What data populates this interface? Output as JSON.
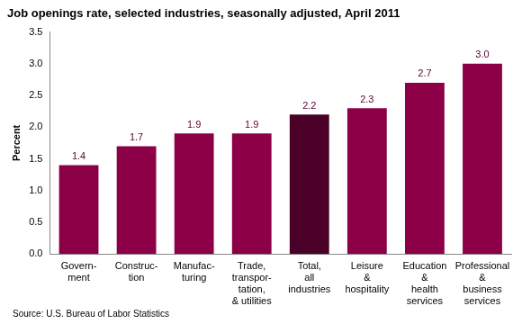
{
  "chart_data": {
    "type": "bar",
    "title": "Job openings rate, selected industries, seasonally adjusted, April 2011",
    "y_label": "Percent",
    "source": "Source: U.S. Bureau of Labor Statistics",
    "categories": [
      "Govern-\nment",
      "Construc-\ntion",
      "Manufac-\nturing",
      "Trade,\ntranspor-\ntation,\n& utilities",
      "Total,\nall\nindustries",
      "Leisure\n&\nhospitality",
      "Education\n&\nhealth\nservices",
      "Professional\n&\nbusiness\nservices"
    ],
    "values": [
      1.4,
      1.7,
      1.9,
      1.9,
      2.2,
      2.3,
      2.7,
      3.0
    ],
    "value_labels": [
      "1.4",
      "1.7",
      "1.9",
      "1.9",
      "2.2",
      "2.3",
      "2.7",
      "3.0"
    ],
    "colors": [
      "#8c0048",
      "#8c0048",
      "#8c0048",
      "#8c0048",
      "#4a0027",
      "#8c0048",
      "#8c0048",
      "#8c0048"
    ],
    "ylim": [
      0,
      3.5
    ],
    "yticks": [
      {
        "value": 0,
        "label": "0.0"
      },
      0.5,
      {
        "value": 1,
        "label": "1.0"
      },
      1.5,
      {
        "value": 2,
        "label": "2.0"
      },
      2.5,
      {
        "value": 3,
        "label": "3.0"
      },
      3.5
    ],
    "data_labels": true,
    "grid": false
  }
}
